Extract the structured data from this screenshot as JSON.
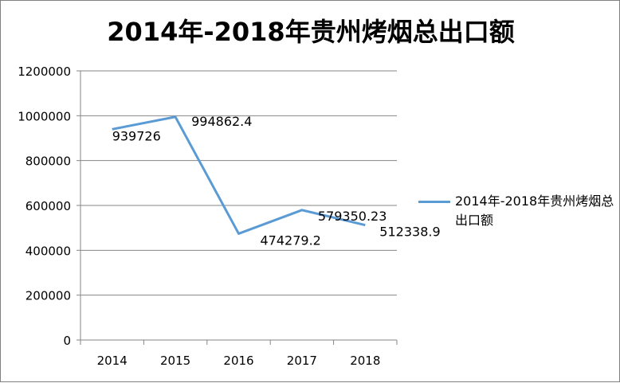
{
  "chart_data": {
    "type": "line",
    "title": "2014年-2018年贵州烤烟总出口额",
    "categories": [
      "2014",
      "2015",
      "2016",
      "2017",
      "2018"
    ],
    "series": [
      {
        "name": "2014年-2018年贵州烤烟总出口额",
        "values": [
          939726,
          994862.4,
          474279.2,
          579350.23,
          512338.9
        ],
        "labels": [
          "939726",
          "994862.4",
          "474279.2",
          "579350.23",
          "512338.9"
        ],
        "color": "#5b9bd5"
      }
    ],
    "ylim": [
      0,
      1200000
    ],
    "yticks": [
      0,
      200000,
      400000,
      600000,
      800000,
      1000000,
      1200000
    ],
    "grid": true,
    "legend": "right"
  }
}
